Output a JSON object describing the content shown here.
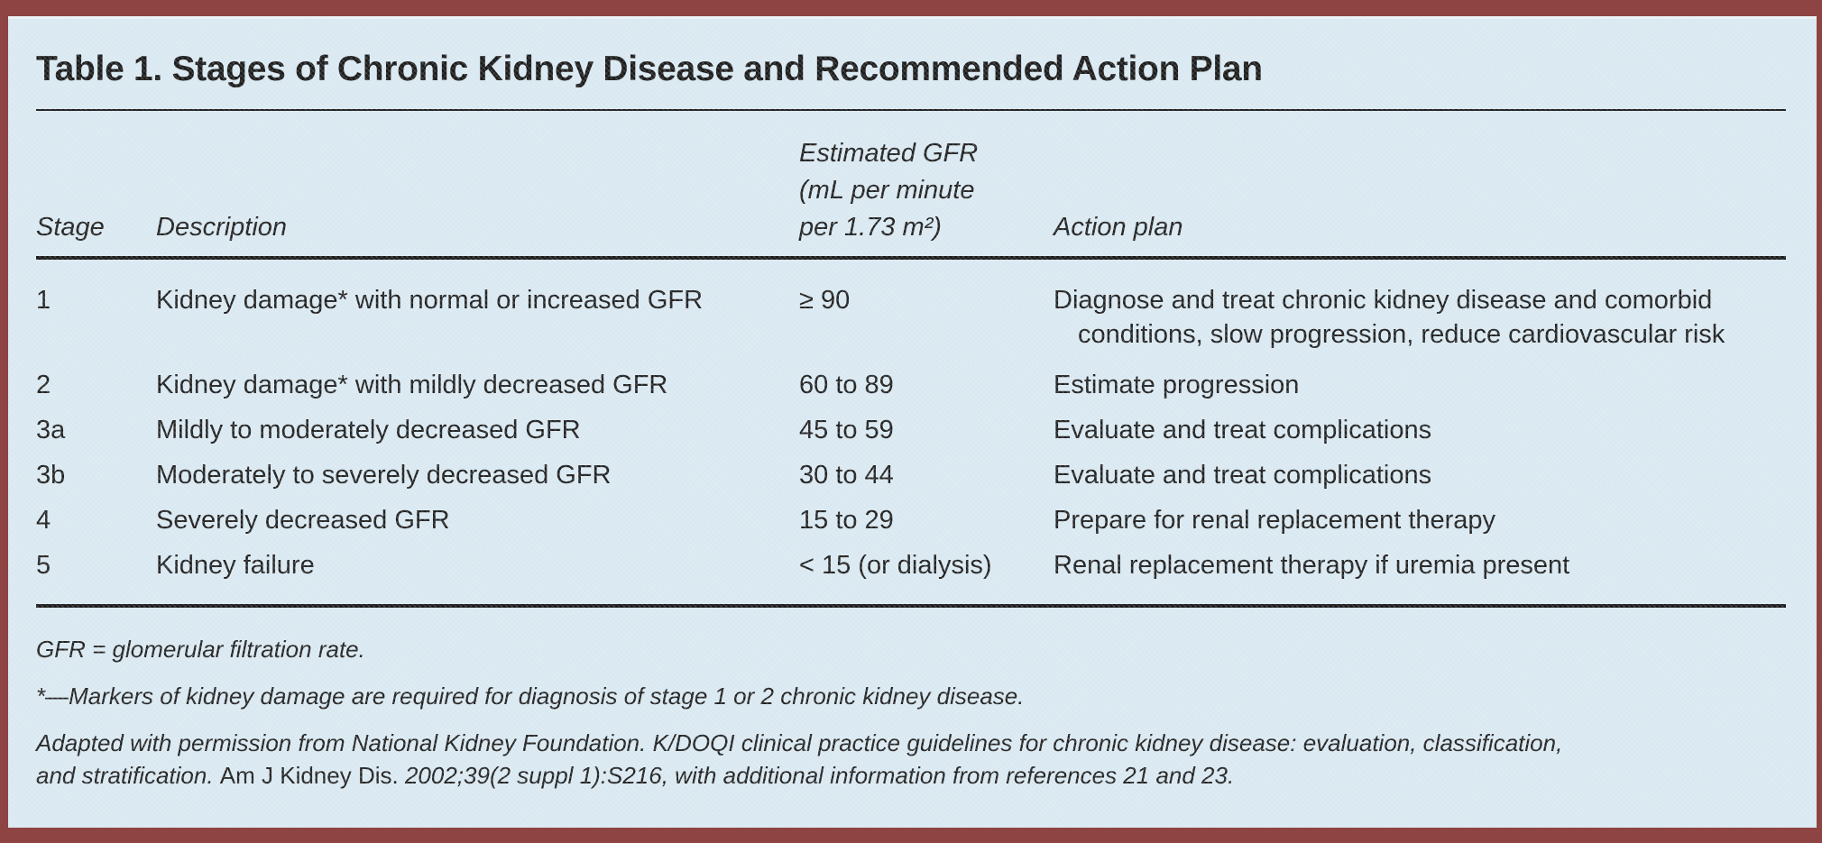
{
  "colors": {
    "frame_red": "#8e4442",
    "panel_blue": "#d9e8f1",
    "rule_black": "#1a1a1a",
    "text": "#212121"
  },
  "title": "Table 1. Stages of Chronic Kidney Disease and Recommended Action Plan",
  "table": {
    "headers": {
      "stage": "Stage",
      "description": "Description",
      "gfr_lines": [
        "Estimated GFR",
        "(mL per minute",
        "per 1.73 m²)"
      ],
      "action": "Action plan"
    },
    "rows": [
      {
        "stage": "1",
        "description": "Kidney damage* with normal or increased GFR",
        "gfr": "≥ 90",
        "action": "Diagnose and treat chronic kidney disease and comorbid conditions, slow progression, reduce cardiovascular risk"
      },
      {
        "stage": "2",
        "description": "Kidney damage* with mildly decreased GFR",
        "gfr": "60 to 89",
        "action": "Estimate progression"
      },
      {
        "stage": "3a",
        "description": "Mildly to moderately decreased GFR",
        "gfr": "45 to 59",
        "action": "Evaluate and treat complications"
      },
      {
        "stage": "3b",
        "description": "Moderately to severely decreased GFR",
        "gfr": "30 to 44",
        "action": "Evaluate and treat complications"
      },
      {
        "stage": "4",
        "description": "Severely decreased GFR",
        "gfr": "15 to 29",
        "action": "Prepare for renal replacement therapy"
      },
      {
        "stage": "5",
        "description": "Kidney failure",
        "gfr": "< 15 (or dialysis)",
        "action": "Renal replacement therapy if uremia present"
      }
    ]
  },
  "footnotes": [
    {
      "lines": [
        [
          {
            "t": "GFR = glomerular filtration rate.",
            "i": true
          }
        ]
      ]
    },
    {
      "lines": [
        [
          {
            "t": "*—Markers of kidney damage are required for diagnosis of stage 1 or 2 chronic kidney disease.",
            "i": true
          }
        ]
      ]
    },
    {
      "lines": [
        [
          {
            "t": "Adapted with permission from National Kidney Foundation. K/DOQI clinical practice guidelines for chronic kidney disease: evaluation, classification,",
            "i": true
          }
        ],
        [
          {
            "t": "and stratification. ",
            "i": true
          },
          {
            "t": "Am J Kidney Dis.",
            "i": false
          },
          {
            "t": " 2002;39(2 suppl 1):S216, with additional information from references 21 and 23.",
            "i": true
          }
        ]
      ]
    }
  ]
}
